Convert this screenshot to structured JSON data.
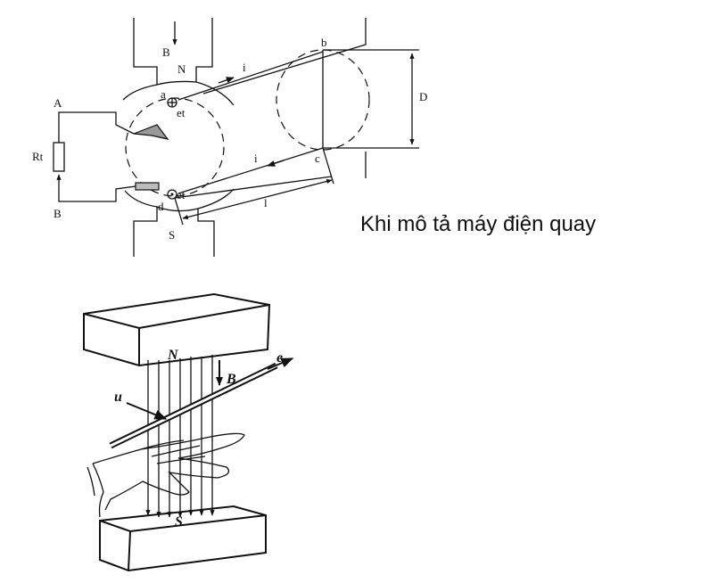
{
  "caption": "Khi mô tả máy điện quay",
  "generator_diagram": {
    "labels": {
      "B_top": "B",
      "N": "N",
      "S": "S",
      "A": "A",
      "B_left": "B",
      "Rt": "Rt",
      "a": "a",
      "b": "b",
      "c": "c",
      "d": "d",
      "et_top": "et",
      "et_bottom": "et",
      "i_top": "i",
      "i_bottom": "i",
      "D": "D",
      "l": "l"
    }
  },
  "right_hand_rule": {
    "labels": {
      "N": "N",
      "S": "S",
      "B": "B",
      "e": "e",
      "u": "u"
    }
  }
}
